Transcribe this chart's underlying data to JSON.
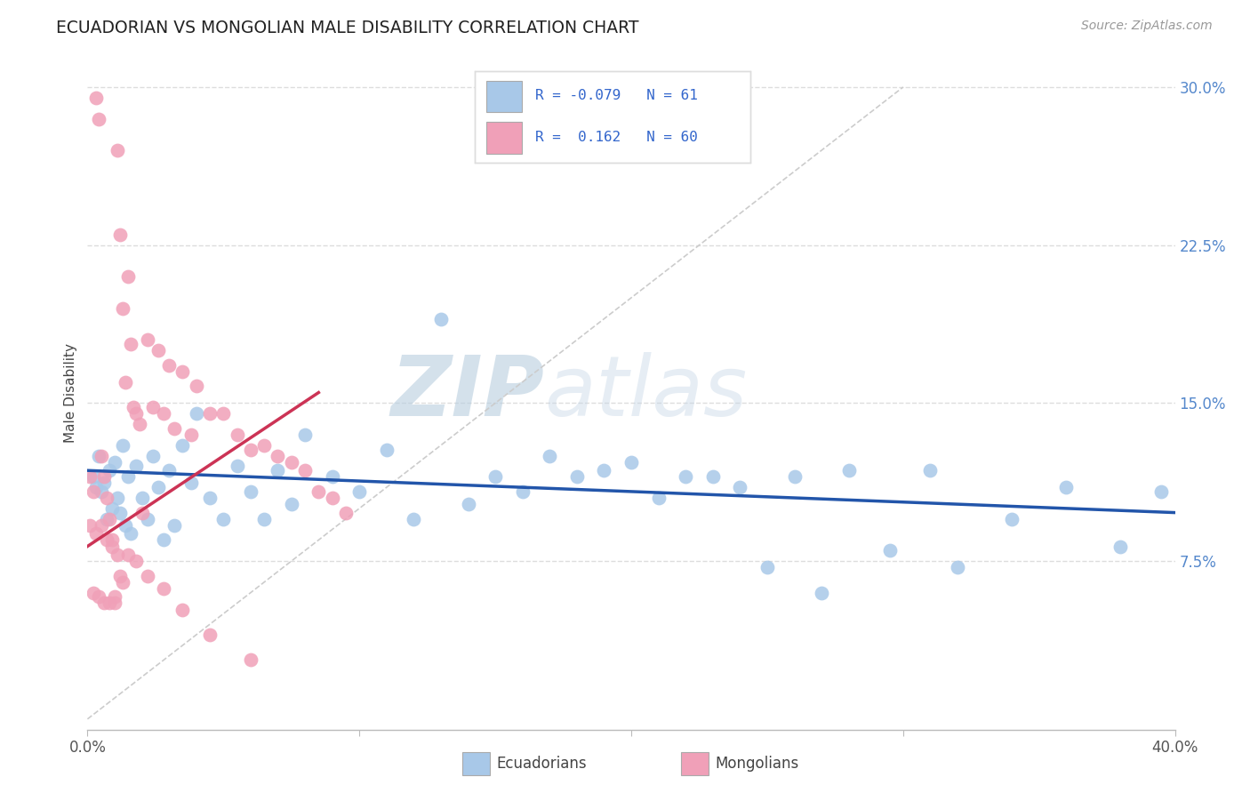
{
  "title": "ECUADORIAN VS MONGOLIAN MALE DISABILITY CORRELATION CHART",
  "source_text": "Source: ZipAtlas.com",
  "xlabel_ecuadorians": "Ecuadorians",
  "xlabel_mongolians": "Mongolians",
  "ylabel": "Male Disability",
  "x_min": 0.0,
  "x_max": 0.4,
  "y_min": -0.005,
  "y_max": 0.315,
  "y_ticks": [
    0.075,
    0.15,
    0.225,
    0.3
  ],
  "y_tick_labels": [
    "7.5%",
    "15.0%",
    "22.5%",
    "30.0%"
  ],
  "blue_color": "#A8C8E8",
  "pink_color": "#F0A0B8",
  "blue_line_color": "#2255AA",
  "pink_line_color": "#CC3355",
  "diagonal_color": "#CCCCCC",
  "R_blue": -0.079,
  "N_blue": 61,
  "R_pink": 0.162,
  "N_pink": 60,
  "watermark_zip": "ZIP",
  "watermark_atlas": "atlas",
  "blue_trend_x": [
    0.0,
    0.4
  ],
  "blue_trend_y": [
    0.118,
    0.098
  ],
  "pink_trend_x": [
    0.0,
    0.085
  ],
  "pink_trend_y": [
    0.082,
    0.155
  ],
  "blue_points_x": [
    0.002,
    0.003,
    0.004,
    0.005,
    0.006,
    0.007,
    0.008,
    0.009,
    0.01,
    0.011,
    0.012,
    0.013,
    0.014,
    0.015,
    0.016,
    0.018,
    0.02,
    0.022,
    0.024,
    0.026,
    0.028,
    0.03,
    0.032,
    0.035,
    0.038,
    0.04,
    0.045,
    0.05,
    0.055,
    0.06,
    0.065,
    0.07,
    0.075,
    0.08,
    0.09,
    0.1,
    0.11,
    0.12,
    0.13,
    0.14,
    0.15,
    0.16,
    0.17,
    0.18,
    0.19,
    0.2,
    0.21,
    0.22,
    0.23,
    0.24,
    0.25,
    0.26,
    0.27,
    0.28,
    0.295,
    0.31,
    0.32,
    0.34,
    0.36,
    0.38,
    0.395
  ],
  "blue_points_y": [
    0.115,
    0.11,
    0.125,
    0.108,
    0.112,
    0.095,
    0.118,
    0.1,
    0.122,
    0.105,
    0.098,
    0.13,
    0.092,
    0.115,
    0.088,
    0.12,
    0.105,
    0.095,
    0.125,
    0.11,
    0.085,
    0.118,
    0.092,
    0.13,
    0.112,
    0.145,
    0.105,
    0.095,
    0.12,
    0.108,
    0.095,
    0.118,
    0.102,
    0.135,
    0.115,
    0.108,
    0.128,
    0.095,
    0.19,
    0.102,
    0.115,
    0.108,
    0.125,
    0.115,
    0.118,
    0.122,
    0.105,
    0.115,
    0.115,
    0.11,
    0.072,
    0.115,
    0.06,
    0.118,
    0.08,
    0.118,
    0.072,
    0.095,
    0.11,
    0.082,
    0.108
  ],
  "pink_points_x": [
    0.001,
    0.002,
    0.003,
    0.004,
    0.005,
    0.006,
    0.007,
    0.008,
    0.009,
    0.01,
    0.011,
    0.012,
    0.013,
    0.014,
    0.015,
    0.016,
    0.017,
    0.018,
    0.019,
    0.02,
    0.022,
    0.024,
    0.026,
    0.028,
    0.03,
    0.032,
    0.035,
    0.038,
    0.04,
    0.045,
    0.05,
    0.055,
    0.06,
    0.065,
    0.07,
    0.075,
    0.08,
    0.085,
    0.09,
    0.095,
    0.001,
    0.002,
    0.003,
    0.004,
    0.005,
    0.006,
    0.007,
    0.008,
    0.009,
    0.01,
    0.011,
    0.012,
    0.013,
    0.015,
    0.018,
    0.022,
    0.028,
    0.035,
    0.045,
    0.06
  ],
  "pink_points_y": [
    0.115,
    0.108,
    0.295,
    0.285,
    0.125,
    0.115,
    0.105,
    0.095,
    0.085,
    0.055,
    0.27,
    0.23,
    0.195,
    0.16,
    0.21,
    0.178,
    0.148,
    0.145,
    0.14,
    0.098,
    0.18,
    0.148,
    0.175,
    0.145,
    0.168,
    0.138,
    0.165,
    0.135,
    0.158,
    0.145,
    0.145,
    0.135,
    0.128,
    0.13,
    0.125,
    0.122,
    0.118,
    0.108,
    0.105,
    0.098,
    0.092,
    0.06,
    0.088,
    0.058,
    0.092,
    0.055,
    0.085,
    0.055,
    0.082,
    0.058,
    0.078,
    0.068,
    0.065,
    0.078,
    0.075,
    0.068,
    0.062,
    0.052,
    0.04,
    0.028
  ]
}
